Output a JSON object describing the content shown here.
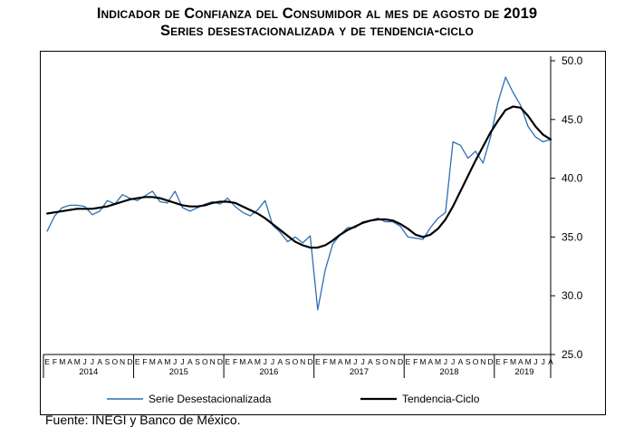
{
  "title_line1": "Indicador de Confianza del Consumidor al mes de agosto de 2019",
  "title_line2": "Series desestacionalizada y de tendencia-ciclo",
  "source": "Fuente: INEGI y Banco de México.",
  "chart_data": {
    "type": "line",
    "title": "Indicador de Confianza del Consumidor al mes de agosto de 2019",
    "subtitle": "Series desestacionalizada y de tendencia-ciclo",
    "ylim": [
      25.0,
      50.0
    ],
    "yticks": [
      "25.0",
      "30.0",
      "35.0",
      "40.0",
      "45.0",
      "50.0"
    ],
    "y_axis_side": "right",
    "grid": false,
    "legend_position": "bottom",
    "month_labels": [
      "E",
      "F",
      "M",
      "A",
      "M",
      "J",
      "J",
      "A",
      "S",
      "O",
      "N",
      "D"
    ],
    "years": [
      "2014",
      "2015",
      "2016",
      "2017",
      "2018",
      "2019"
    ],
    "colors": {
      "desestacionalizada": "#2e6fb5",
      "tendencia": "#000000"
    },
    "series": [
      {
        "name": "Serie Desestacionalizada",
        "key": "desestacionalizada",
        "values": [
          35.5,
          36.8,
          37.5,
          37.7,
          37.7,
          37.6,
          36.9,
          37.2,
          38.1,
          37.8,
          38.6,
          38.3,
          38.1,
          38.5,
          38.9,
          38.0,
          37.9,
          38.9,
          37.5,
          37.2,
          37.5,
          37.8,
          38.0,
          37.8,
          38.3,
          37.6,
          37.1,
          36.8,
          37.3,
          38.1,
          36.0,
          35.4,
          34.6,
          35.0,
          34.5,
          35.1,
          28.8,
          32.2,
          34.4,
          35.2,
          35.8,
          35.8,
          36.3,
          36.4,
          36.6,
          36.3,
          36.3,
          35.9,
          35.0,
          34.9,
          34.8,
          35.8,
          36.6,
          37.1,
          43.1,
          42.8,
          41.7,
          42.3,
          41.3,
          43.5,
          46.5,
          48.6,
          47.3,
          46.2,
          44.4,
          43.5,
          43.1,
          43.3
        ]
      },
      {
        "name": "Tendencia-Ciclo",
        "key": "tendencia",
        "values": [
          37.0,
          37.1,
          37.2,
          37.3,
          37.4,
          37.4,
          37.4,
          37.5,
          37.6,
          37.8,
          38.0,
          38.2,
          38.3,
          38.4,
          38.4,
          38.3,
          38.1,
          37.9,
          37.7,
          37.6,
          37.6,
          37.7,
          37.9,
          38.0,
          38.0,
          37.9,
          37.6,
          37.3,
          37.0,
          36.6,
          36.1,
          35.6,
          35.1,
          34.6,
          34.3,
          34.1,
          34.1,
          34.3,
          34.7,
          35.2,
          35.6,
          35.9,
          36.2,
          36.4,
          36.5,
          36.5,
          36.4,
          36.1,
          35.7,
          35.2,
          35.0,
          35.2,
          35.7,
          36.5,
          37.6,
          38.9,
          40.2,
          41.5,
          42.7,
          43.9,
          44.9,
          45.8,
          46.1,
          46.0,
          45.3,
          44.4,
          43.7,
          43.3
        ]
      }
    ]
  }
}
